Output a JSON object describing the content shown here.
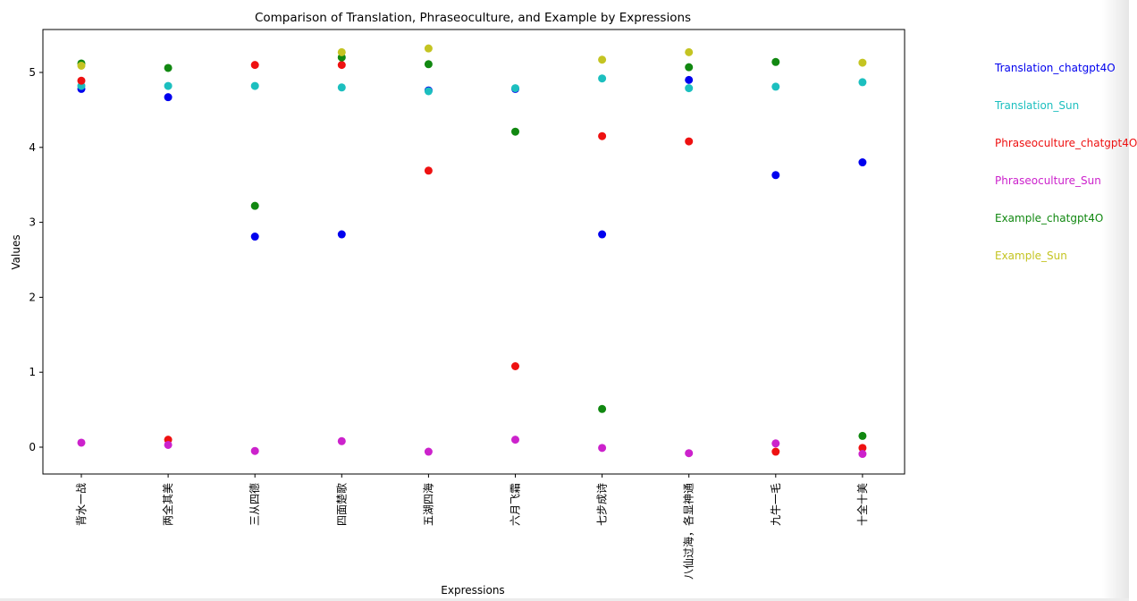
{
  "chart_data": {
    "type": "scatter",
    "title": "Comparison of Translation, Phraseoculture, and Example by Expressions",
    "xlabel": "Expressions",
    "ylabel": "Values",
    "categories": [
      "背水一战",
      "两全其美",
      "三从四德",
      "四面楚歌",
      "五湖四海",
      "六月飞霜",
      "七步成诗",
      "八仙过海，各显神通",
      "九牛一毛",
      "十全十美"
    ],
    "ylim": [
      -0.38,
      5.6
    ],
    "yticks": [
      "0",
      "1",
      "2",
      "3",
      "4",
      "5"
    ],
    "grid": false,
    "legend_position": "right, outside plot",
    "series": [
      {
        "name": "Translation_chatgpt4O",
        "color": "#0000ee",
        "values": [
          4.78,
          4.67,
          2.81,
          2.84,
          4.76,
          4.78,
          2.84,
          4.9,
          3.63,
          3.8
        ]
      },
      {
        "name": "Translation_Sun",
        "color": "#1cbfbf",
        "values": [
          4.82,
          4.82,
          4.82,
          4.8,
          4.75,
          4.79,
          4.92,
          4.79,
          4.81,
          4.87
        ]
      },
      {
        "name": "Phraseoculture_chatgpt4O",
        "color": "#ee1111",
        "values": [
          4.89,
          0.1,
          5.1,
          5.1,
          3.69,
          1.08,
          4.15,
          4.08,
          -0.06,
          -0.01
        ]
      },
      {
        "name": "Phraseoculture_Sun",
        "color": "#cc22cc",
        "values": [
          0.06,
          0.03,
          -0.05,
          0.08,
          -0.06,
          0.1,
          -0.01,
          -0.08,
          0.05,
          -0.09
        ]
      },
      {
        "name": "Example_chatgpt4O",
        "color": "#118811",
        "values": [
          5.12,
          5.06,
          3.22,
          5.2,
          5.11,
          4.21,
          0.51,
          5.07,
          5.14,
          0.15
        ]
      },
      {
        "name": "Example_Sun",
        "color": "#c4c422",
        "values": [
          5.09,
          null,
          null,
          5.27,
          5.32,
          null,
          5.17,
          5.27,
          null,
          5.13
        ]
      }
    ]
  }
}
